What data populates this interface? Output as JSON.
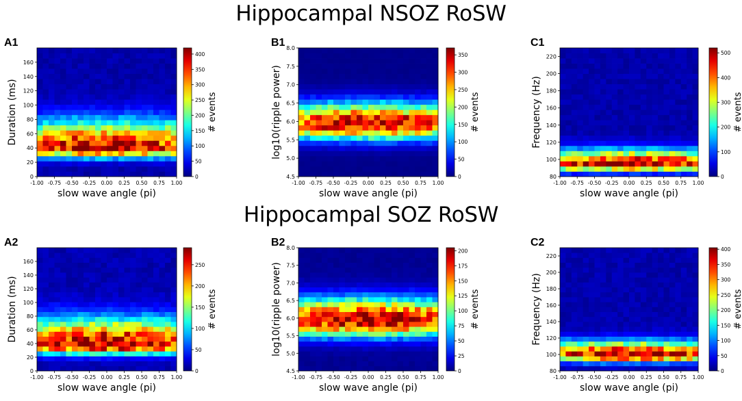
{
  "row_titles": [
    "Hippocampal NSOZ RoSW",
    "Hippocampal SOZ RoSW"
  ],
  "chart_data": [
    {
      "id": "A1",
      "label": "A1",
      "type": "heatmap",
      "xlabel": "slow wave angle (pi)",
      "ylabel": "Duration (ms)",
      "xlim": [
        -1.0,
        1.0
      ],
      "ylim": [
        0,
        180
      ],
      "xticks": [
        "-1.00",
        "-0.75",
        "-0.50",
        "-0.25",
        "0.00",
        "0.25",
        "0.50",
        "0.75",
        "1.00"
      ],
      "yticks": [
        "0",
        "20",
        "40",
        "60",
        "80",
        "100",
        "120",
        "140",
        "160"
      ],
      "ytick_values": [
        0,
        20,
        40,
        60,
        80,
        100,
        120,
        140,
        160
      ],
      "cbar_label": "# events",
      "cbar_max": 420,
      "cbar_ticks": [
        0,
        50,
        100,
        150,
        200,
        250,
        300,
        350,
        400
      ],
      "band_center": 40,
      "band_sigma_low": 9,
      "band_sigma_high": 26,
      "peak_value": 400,
      "tail_value": 18,
      "rows": 25,
      "cols": 24
    },
    {
      "id": "B1",
      "label": "B1",
      "type": "heatmap",
      "xlabel": "slow wave angle (pi)",
      "ylabel": "log10(ripple power)",
      "xlim": [
        -1.0,
        1.0
      ],
      "ylim": [
        4.5,
        8.0
      ],
      "xticks": [
        "-1.00",
        "-0.75",
        "-0.50",
        "-0.25",
        "0.00",
        "0.25",
        "0.50",
        "0.75",
        "1.00"
      ],
      "yticks": [
        "4.5",
        "5.0",
        "5.5",
        "6.0",
        "6.5",
        "7.0",
        "7.5",
        "8.0"
      ],
      "ytick_values": [
        4.5,
        5.0,
        5.5,
        6.0,
        6.5,
        7.0,
        7.5,
        8.0
      ],
      "cbar_label": "# events",
      "cbar_max": 370,
      "cbar_ticks": [
        0,
        50,
        100,
        150,
        200,
        250,
        300,
        350
      ],
      "band_center": 5.95,
      "band_sigma_low": 0.3,
      "band_sigma_high": 0.38,
      "peak_value": 350,
      "tail_value": 4,
      "rows": 25,
      "cols": 24
    },
    {
      "id": "C1",
      "label": "C1",
      "type": "heatmap",
      "xlabel": "slow wave angle (pi)",
      "ylabel": "Frequency (Hz)",
      "xlim": [
        -1.0,
        1.0
      ],
      "ylim": [
        80,
        230
      ],
      "xticks": [
        "-1.00",
        "-0.75",
        "-0.50",
        "-0.25",
        "0.00",
        "0.25",
        "0.50",
        "0.75",
        "1.00"
      ],
      "yticks": [
        "80",
        "100",
        "120",
        "140",
        "160",
        "180",
        "200",
        "220"
      ],
      "ytick_values": [
        80,
        100,
        120,
        140,
        160,
        180,
        200,
        220
      ],
      "cbar_label": "# events",
      "cbar_max": 520,
      "cbar_ticks": [
        0,
        100,
        200,
        300,
        400,
        500
      ],
      "band_center": 95,
      "band_sigma_low": 6,
      "band_sigma_high": 11,
      "peak_value": 510,
      "tail_value": 22,
      "rows": 25,
      "cols": 24
    },
    {
      "id": "A2",
      "label": "A2",
      "type": "heatmap",
      "xlabel": "slow wave angle (pi)",
      "ylabel": "Duration (ms)",
      "xlim": [
        -1.0,
        1.0
      ],
      "ylim": [
        0,
        180
      ],
      "xticks": [
        "-1.00",
        "-0.75",
        "-0.50",
        "-0.25",
        "0.00",
        "0.25",
        "0.50",
        "0.75",
        "1.00"
      ],
      "yticks": [
        "0",
        "20",
        "40",
        "60",
        "80",
        "100",
        "120",
        "140",
        "160"
      ],
      "ytick_values": [
        0,
        20,
        40,
        60,
        80,
        100,
        120,
        140,
        160
      ],
      "cbar_label": "# events",
      "cbar_max": 290,
      "cbar_ticks": [
        0,
        50,
        100,
        150,
        200,
        250
      ],
      "band_center": 38,
      "band_sigma_low": 9,
      "band_sigma_high": 26,
      "peak_value": 285,
      "tail_value": 14,
      "rows": 25,
      "cols": 24
    },
    {
      "id": "B2",
      "label": "B2",
      "type": "heatmap",
      "xlabel": "slow wave angle (pi)",
      "ylabel": "log10(ripple power)",
      "xlim": [
        -1.0,
        1.0
      ],
      "ylim": [
        4.5,
        8.0
      ],
      "xticks": [
        "-1.00",
        "-0.75",
        "-0.50",
        "-0.25",
        "0.00",
        "0.25",
        "0.50",
        "0.75",
        "1.00"
      ],
      "yticks": [
        "4.5",
        "5.0",
        "5.5",
        "6.0",
        "6.5",
        "7.0",
        "7.5",
        "8.0"
      ],
      "ytick_values": [
        4.5,
        5.0,
        5.5,
        6.0,
        6.5,
        7.0,
        7.5,
        8.0
      ],
      "cbar_label": "# events",
      "cbar_max": 205,
      "cbar_ticks": [
        0,
        25,
        50,
        75,
        100,
        125,
        150,
        175,
        200
      ],
      "band_center": 5.95,
      "band_sigma_low": 0.32,
      "band_sigma_high": 0.42,
      "peak_value": 200,
      "tail_value": 4,
      "rows": 25,
      "cols": 24
    },
    {
      "id": "C2",
      "label": "C2",
      "type": "heatmap",
      "xlabel": "slow wave angle (pi)",
      "ylabel": "Frequency (Hz)",
      "xlim": [
        -1.0,
        1.0
      ],
      "ylim": [
        80,
        230
      ],
      "xticks": [
        "-1.00",
        "-0.75",
        "-0.50",
        "-0.25",
        "0.00",
        "0.25",
        "0.50",
        "0.75",
        "1.00"
      ],
      "yticks": [
        "80",
        "100",
        "120",
        "140",
        "160",
        "180",
        "200",
        "220"
      ],
      "ytick_values": [
        80,
        100,
        120,
        140,
        160,
        180,
        200,
        220
      ],
      "cbar_label": "# events",
      "cbar_max": 405,
      "cbar_ticks": [
        0,
        50,
        100,
        150,
        200,
        250,
        300,
        350,
        400
      ],
      "band_center": 100,
      "band_sigma_low": 6,
      "band_sigma_high": 11,
      "peak_value": 395,
      "tail_value": 18,
      "rows": 25,
      "cols": 24
    }
  ]
}
